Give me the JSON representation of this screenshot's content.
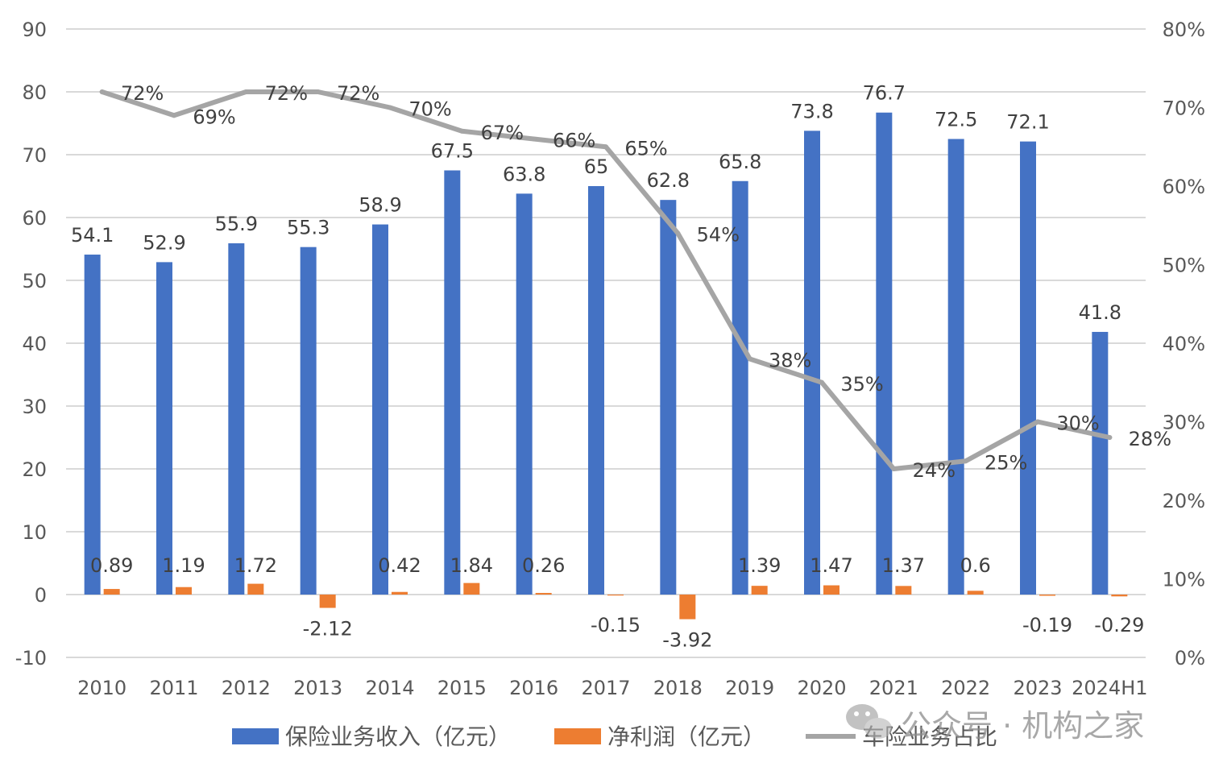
{
  "chart_data": {
    "type": "bar",
    "categories": [
      "2010",
      "2011",
      "2012",
      "2013",
      "2014",
      "2015",
      "2016",
      "2017",
      "2018",
      "2019",
      "2020",
      "2021",
      "2022",
      "2023",
      "2024H1"
    ],
    "series": [
      {
        "name": "保险业务收入（亿元）",
        "type": "bar",
        "axis": "left",
        "color": "#4472c4",
        "values": [
          54.1,
          52.9,
          55.9,
          55.3,
          58.9,
          67.5,
          63.8,
          65,
          62.8,
          65.8,
          73.8,
          76.7,
          72.5,
          72.1,
          41.8
        ],
        "labels": [
          "54.1",
          "52.9",
          "55.9",
          "55.3",
          "58.9",
          "67.5",
          "63.8",
          "65",
          "62.8",
          "65.8",
          "73.8",
          "76.7",
          "72.5",
          "72.1",
          "41.8"
        ]
      },
      {
        "name": "净利润（亿元）",
        "type": "bar",
        "axis": "left",
        "color": "#ed7d31",
        "values": [
          0.89,
          1.19,
          1.72,
          -2.12,
          0.42,
          1.84,
          0.26,
          -0.15,
          -3.92,
          1.39,
          1.47,
          1.37,
          0.6,
          -0.19,
          -0.29
        ],
        "labels": [
          "0.89",
          "1.19",
          "1.72",
          "-2.12",
          "0.42",
          "1.84",
          "0.26",
          "-0.15",
          "-3.92",
          "1.39",
          "1.47",
          "1.37",
          "0.6",
          "-0.19",
          "-0.29"
        ]
      },
      {
        "name": "车险业务占比",
        "type": "line",
        "axis": "right",
        "color": "#a5a5a5",
        "values": [
          72,
          69,
          72,
          72,
          70,
          67,
          66,
          65,
          54,
          38,
          35,
          24,
          25,
          30,
          28
        ],
        "labels": [
          "72%",
          "69%",
          "72%",
          "72%",
          "70%",
          "67%",
          "66%",
          "65%",
          "54%",
          "38%",
          "35%",
          "24%",
          "25%",
          "30%",
          "28%"
        ]
      }
    ],
    "y_left": {
      "min": -10,
      "max": 90,
      "step": 10,
      "ticks": [
        "90",
        "80",
        "70",
        "60",
        "50",
        "40",
        "30",
        "20",
        "10",
        "0",
        "-10"
      ]
    },
    "y_right": {
      "min": 0,
      "max": 80,
      "step": 10,
      "ticks": [
        "80%",
        "70%",
        "60%",
        "50%",
        "40%",
        "30%",
        "20%",
        "10%",
        "0%"
      ]
    },
    "grid": true,
    "legend_position": "bottom"
  },
  "watermark": {
    "text": "公众号 · 机构之家",
    "icon": "wechat-icon"
  }
}
